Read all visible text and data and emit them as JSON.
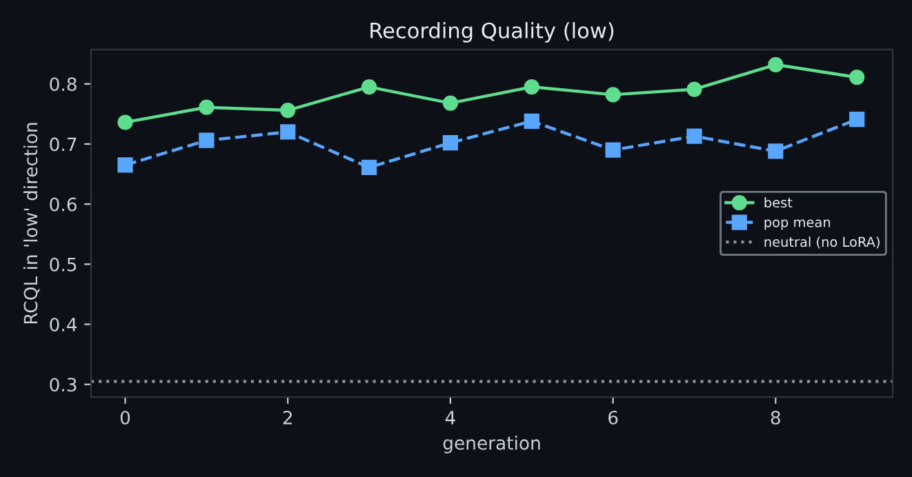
{
  "chart_data": {
    "type": "line",
    "title": "Recording Quality (low)",
    "xlabel": "generation",
    "ylabel": "RCQL in 'low' direction",
    "x": [
      0,
      1,
      2,
      3,
      4,
      5,
      6,
      7,
      8,
      9
    ],
    "series": [
      {
        "name": "best",
        "color": "#5fdd8f",
        "values": [
          0.736,
          0.761,
          0.756,
          0.795,
          0.768,
          0.795,
          0.782,
          0.791,
          0.832,
          0.811
        ],
        "marker": "circle",
        "line_style": "solid"
      },
      {
        "name": "pop mean",
        "color": "#58a6ff",
        "values": [
          0.665,
          0.706,
          0.72,
          0.661,
          0.702,
          0.738,
          0.69,
          0.713,
          0.688,
          0.741
        ],
        "marker": "square",
        "line_style": "dashed"
      }
    ],
    "ref_lines": [
      {
        "axis": "y",
        "value": 0.305,
        "label": "neutral (no LoRA)",
        "color": "#8b949e",
        "line_style": "dotted"
      }
    ],
    "xlim": [
      -0.42,
      9.44
    ],
    "ylim": [
      0.279,
      0.857
    ],
    "xticks": [
      0,
      2,
      4,
      6,
      8
    ],
    "yticks": [
      0.3,
      0.4,
      0.5,
      0.6,
      0.7,
      0.8
    ],
    "grid": false,
    "legend": "right"
  }
}
